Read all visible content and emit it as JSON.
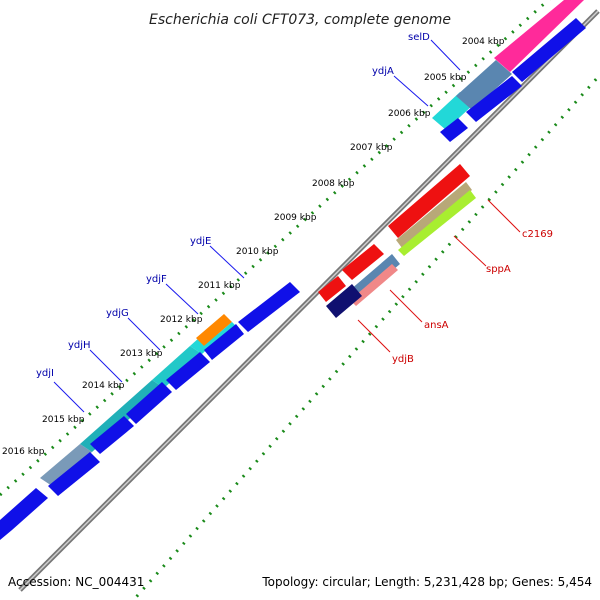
{
  "title": "Escherichia coli CFT073, complete genome",
  "footer": {
    "accession": "Accession: NC_004431",
    "summary": "Topology: circular; Length: 5,231,428 bp; Genes: 5,454"
  },
  "kbp_labels": [
    "2004 kbp",
    "2005 kbp",
    "2006 kbp",
    "2007 kbp",
    "2008 kbp",
    "2009 kbp",
    "2010 kbp",
    "2011 kbp",
    "2012 kbp",
    "2013 kbp",
    "2014 kbp",
    "2015 kbp",
    "2016 kbp"
  ],
  "gene_labels_forward": [
    "selD",
    "ydjA",
    "ydjE",
    "ydjF",
    "ydjG",
    "ydjH",
    "ydjI"
  ],
  "gene_labels_reverse": [
    "c2169",
    "sppA",
    "ansA",
    "ydjB"
  ],
  "colors": {
    "backbone": "#777777",
    "cds_blue": "#1010e8",
    "cyan": "#22d8d8",
    "teal": "#20b0b8",
    "steel": "#5a86b0",
    "pink": "#ff2a9a",
    "red": "#ee1111",
    "olive": "#b8a878",
    "lime": "#a8ee30",
    "navy": "#101070",
    "salmon": "#f08888",
    "orange": "#ff8800",
    "tick_green": "#1a8a1a",
    "label_fwd": "#0000aa",
    "label_rev": "#cc0000"
  }
}
